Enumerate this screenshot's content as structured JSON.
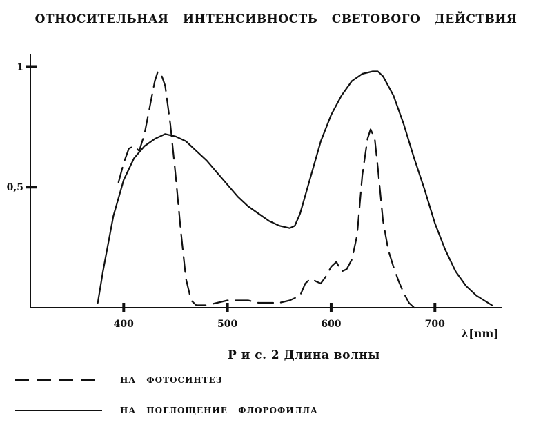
{
  "chart_data": {
    "type": "line",
    "title": "ОТНОСИТЕЛЬНАЯ ИНТЕНСИВНОСТЬ СВЕТОВОГО ДЕЙСТВИЯ",
    "caption": "Р и с. 2 Длина волны",
    "xlabel": "λ[nm]",
    "ylabel": "",
    "xlim": [
      310,
      765
    ],
    "ylim": [
      0,
      1.05
    ],
    "x_ticks": [
      400,
      500,
      600,
      700
    ],
    "x_tick_labels": [
      "400",
      "500",
      "600",
      "700"
    ],
    "y_ticks": [
      0.5,
      1
    ],
    "y_tick_labels": [
      "0,5",
      "1"
    ],
    "grid": false,
    "legend_position": "bottom-left",
    "series": [
      {
        "name": "НА ФОТОСИНТЕЗ",
        "style": "dashed",
        "x": [
          395,
          400,
          405,
          410,
          415,
          420,
          425,
          430,
          433,
          436,
          440,
          445,
          450,
          455,
          460,
          465,
          470,
          480,
          490,
          500,
          510,
          520,
          530,
          540,
          550,
          560,
          570,
          575,
          580,
          585,
          590,
          595,
          600,
          605,
          610,
          615,
          620,
          625,
          630,
          635,
          638,
          642,
          645,
          650,
          655,
          660,
          665,
          670,
          675,
          680
        ],
        "y": [
          0.52,
          0.6,
          0.66,
          0.67,
          0.65,
          0.72,
          0.83,
          0.94,
          0.98,
          0.97,
          0.92,
          0.76,
          0.55,
          0.32,
          0.12,
          0.03,
          0.01,
          0.01,
          0.02,
          0.03,
          0.03,
          0.03,
          0.02,
          0.02,
          0.02,
          0.03,
          0.05,
          0.1,
          0.12,
          0.11,
          0.1,
          0.13,
          0.17,
          0.19,
          0.15,
          0.16,
          0.2,
          0.3,
          0.55,
          0.7,
          0.74,
          0.7,
          0.58,
          0.36,
          0.24,
          0.17,
          0.11,
          0.06,
          0.02,
          0.0
        ]
      },
      {
        "name": "НА ПОГЛОЩЕНИЕ ФЛОРОФИЛЛА",
        "style": "solid",
        "x": [
          375,
          380,
          390,
          400,
          410,
          420,
          430,
          440,
          450,
          460,
          470,
          480,
          490,
          500,
          510,
          520,
          530,
          540,
          550,
          560,
          565,
          570,
          580,
          590,
          600,
          610,
          620,
          630,
          640,
          645,
          650,
          660,
          670,
          680,
          690,
          700,
          710,
          720,
          730,
          740,
          755
        ],
        "y": [
          0.02,
          0.15,
          0.38,
          0.53,
          0.62,
          0.67,
          0.7,
          0.72,
          0.71,
          0.69,
          0.65,
          0.61,
          0.56,
          0.51,
          0.46,
          0.42,
          0.39,
          0.36,
          0.34,
          0.33,
          0.34,
          0.39,
          0.54,
          0.69,
          0.8,
          0.88,
          0.94,
          0.97,
          0.98,
          0.98,
          0.96,
          0.88,
          0.76,
          0.62,
          0.49,
          0.35,
          0.24,
          0.15,
          0.09,
          0.05,
          0.01
        ]
      }
    ]
  }
}
